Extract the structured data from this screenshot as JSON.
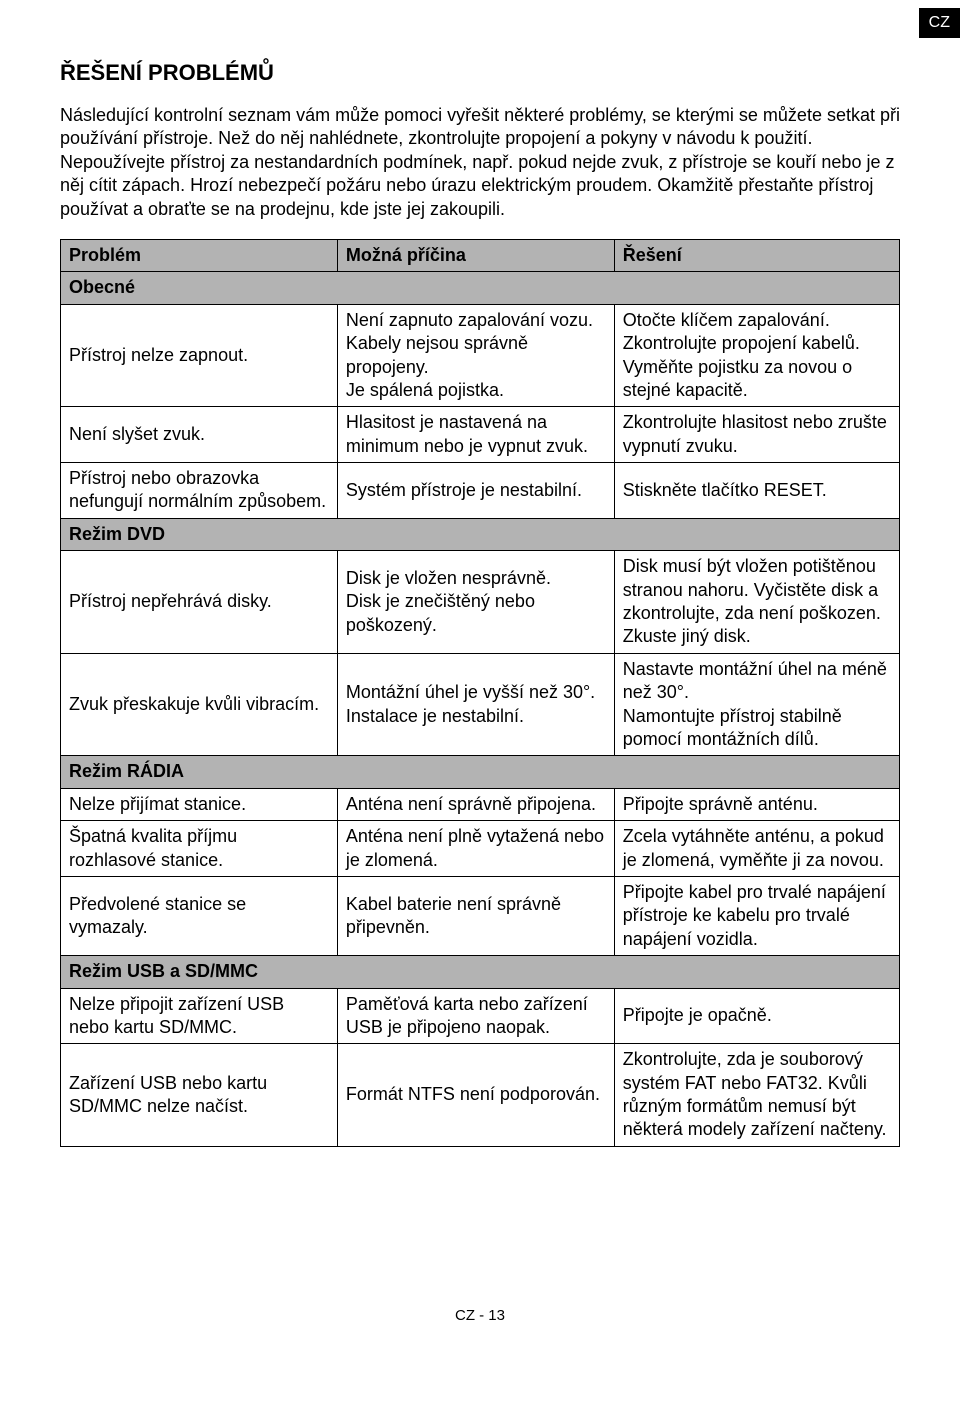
{
  "corner_label": "CZ",
  "title": "ŘEŠENÍ PROBLÉMŮ",
  "intro": "Následující kontrolní seznam vám může pomoci vyřešit některé problémy, se kterými se můžete setkat při používání přístroje. Než do něj nahlédnete, zkontrolujte propojení a pokyny v návodu k použití. Nepoužívejte přístroj za nestandardních podmínek, např. pokud nejde zvuk, z přístroje se kouří nebo je z něj cítit zápach. Hrozí nebezpečí požáru nebo úrazu elektrickým proudem. Okamžitě přestaňte přístroj používat a obraťte se na prodejnu, kde jste jej zakoupili.",
  "columns": [
    "Problém",
    "Možná příčina",
    "Řešení"
  ],
  "sections": [
    {
      "name": "Obecné",
      "rows": [
        {
          "problem": "Přístroj nelze zapnout.",
          "cause": "Není zapnuto zapalování vozu.\nKabely nejsou správně propojeny.\nJe spálená pojistka.",
          "solution": "Otočte klíčem zapalování.\nZkontrolujte propojení kabelů.\nVyměňte pojistku za novou o stejné kapacitě."
        },
        {
          "problem": "Není slyšet zvuk.",
          "cause": "Hlasitost je nastavená na minimum nebo je vypnut zvuk.",
          "solution": "Zkontrolujte hlasitost nebo zrušte vypnutí zvuku."
        },
        {
          "problem": "Přístroj nebo obrazovka nefungují normálním způsobem.",
          "cause": "Systém přístroje je nestabilní.",
          "solution": "Stiskněte tlačítko RESET."
        }
      ]
    },
    {
      "name": "Režim DVD",
      "rows": [
        {
          "problem": "Přístroj nepřehrává disky.",
          "cause": "Disk je vložen nesprávně.\nDisk je znečištěný nebo poškozený.",
          "solution": "Disk musí být vložen potištěnou stranou nahoru. Vyčistěte disk a zkontrolujte, zda není poškozen. Zkuste jiný disk."
        },
        {
          "problem": "Zvuk přeskakuje kvůli vibracím.",
          "cause": "Montážní úhel je vyšší než 30°.\nInstalace je nestabilní.",
          "solution": "Nastavte montážní úhel na méně než 30°.\nNamontujte přístroj stabilně pomocí montážních dílů."
        }
      ]
    },
    {
      "name": "Režim RÁDIA",
      "rows": [
        {
          "problem": "Nelze přijímat stanice.",
          "cause": "Anténa není správně připojena.",
          "solution": "Připojte správně anténu."
        },
        {
          "problem": "Špatná kvalita příjmu rozhlasové stanice.",
          "cause": "Anténa není plně vytažená nebo je zlomená.",
          "solution": "Zcela vytáhněte anténu, a pokud je zlomená, vyměňte ji za novou."
        },
        {
          "problem": "Předvolené stanice se vymazaly.",
          "cause": "Kabel baterie není správně připevněn.",
          "solution": "Připojte kabel pro trvalé napájení přístroje ke kabelu pro trvalé napájení vozidla."
        }
      ]
    },
    {
      "name": "Režim USB a SD/MMC",
      "rows": [
        {
          "problem": "Nelze připojit zařízení USB nebo kartu SD/MMC.",
          "cause": "Paměťová karta nebo zařízení USB je připojeno naopak.",
          "solution": "Připojte je opačně."
        },
        {
          "problem": "Zařízení USB nebo kartu SD/MMC nelze načíst.",
          "cause": "Formát NTFS není podporován.",
          "solution": "Zkontrolujte, zda je souborový systém FAT nebo FAT32. Kvůli různým formátům nemusí být některá modely zařízení načteny."
        }
      ]
    }
  ],
  "footer": "CZ - 13",
  "colors": {
    "section_bg": "#b3b3b3",
    "border": "#000000",
    "page_bg": "#ffffff",
    "text": "#000000",
    "tab_bg": "#000000",
    "tab_text": "#ffffff"
  },
  "column_widths": [
    "33%",
    "33%",
    "34%"
  ]
}
